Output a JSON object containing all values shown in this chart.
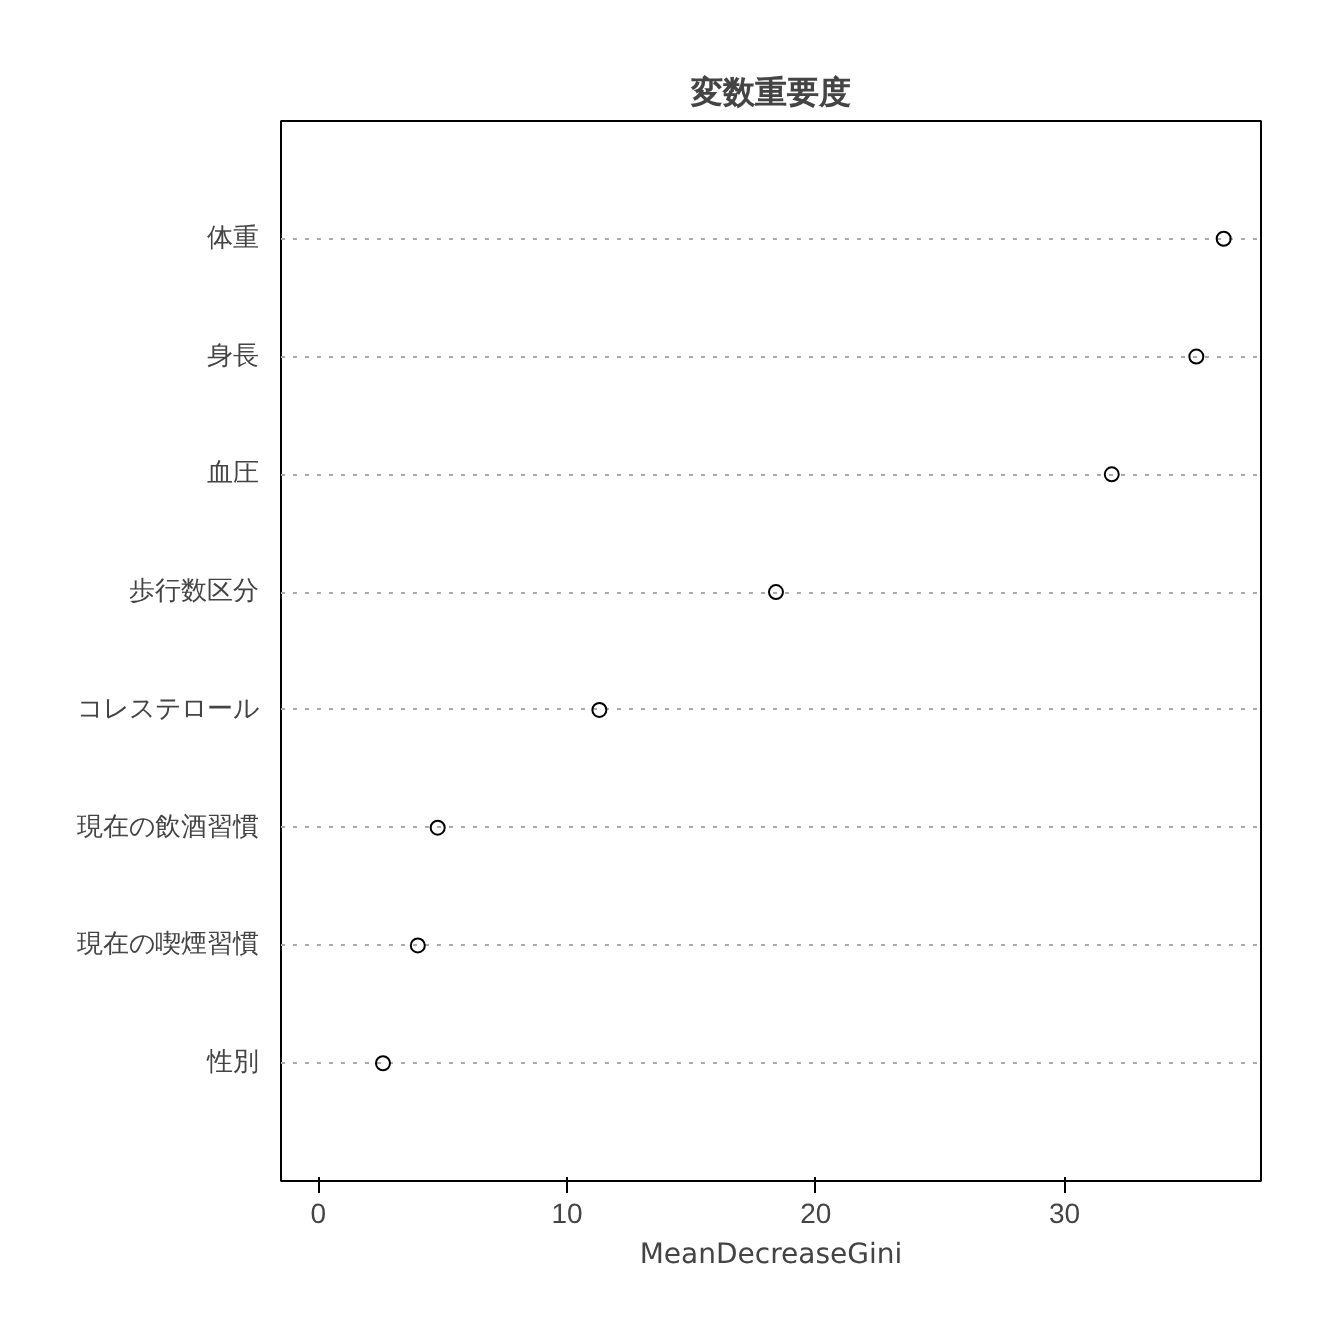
{
  "chart_data": {
    "type": "scatter",
    "title": "変数重要度",
    "xlabel": "MeanDecreaseGini",
    "orientation": "horizontal",
    "categories": [
      "体重",
      "身長",
      "血圧",
      "歩行数区分",
      "コレステロール",
      "現在の飲酒習慣",
      "現在の喫煙習慣",
      "性別"
    ],
    "series": [
      {
        "color": "#000000",
        "values": [
          36.4,
          35.3,
          31.9,
          18.4,
          11.3,
          4.8,
          4.0,
          2.6
        ]
      }
    ],
    "xlim": [
      -1.5,
      37.9
    ],
    "xticks": [
      0,
      10,
      20,
      30
    ],
    "grid": "y",
    "marker": "circle",
    "line_style": "dotted"
  }
}
